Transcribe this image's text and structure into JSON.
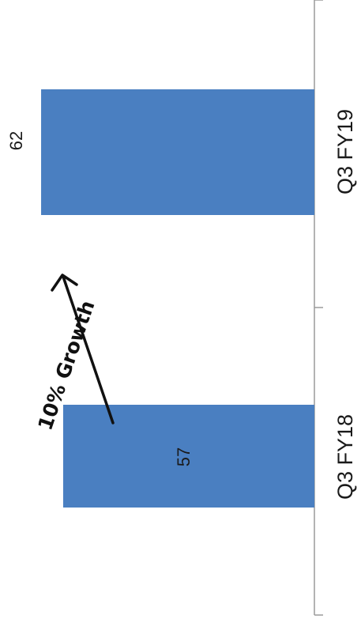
{
  "chart_data": {
    "type": "bar",
    "orientation": "horizontal",
    "categories": [
      "Q3 FY18",
      "Q3 FY19"
    ],
    "values": [
      57,
      62
    ],
    "title": "",
    "xlabel": "",
    "ylabel": "",
    "data_labels": [
      "57",
      "62"
    ],
    "grid": false,
    "legend": "none",
    "bar_color": "#4a7fc1",
    "axis_color": "#9a9a9a",
    "annotation": {
      "text": "10% Growth",
      "type": "arrow"
    }
  }
}
